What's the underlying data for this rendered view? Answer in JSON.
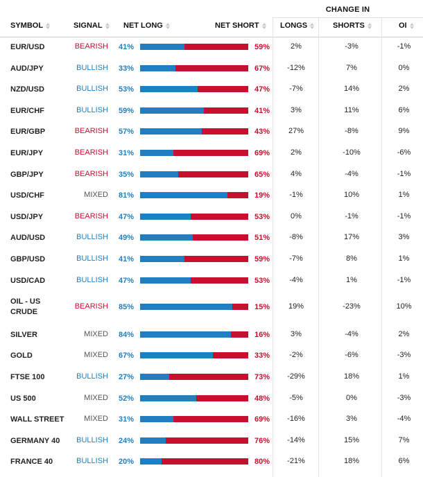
{
  "headers": {
    "symbol": "SYMBOL",
    "signal": "SIGNAL",
    "net_long": "NET LONG",
    "net_short": "NET SHORT",
    "change_in": "CHANGE IN",
    "longs": "LONGS",
    "shorts": "SHORTS",
    "oi": "OI"
  },
  "colors": {
    "bullish": "#1f7fc1",
    "bearish": "#c8102e",
    "mixed": "#555555"
  },
  "rows": [
    {
      "symbol": "EUR/USD",
      "signal": "BEARISH",
      "net_long": "41%",
      "net_short": "59%",
      "longs": "2%",
      "shorts": "-3%",
      "oi": "-1%",
      "long_pct": 41
    },
    {
      "symbol": "AUD/JPY",
      "signal": "BULLISH",
      "net_long": "33%",
      "net_short": "67%",
      "longs": "-12%",
      "shorts": "7%",
      "oi": "0%",
      "long_pct": 33
    },
    {
      "symbol": "NZD/USD",
      "signal": "BULLISH",
      "net_long": "53%",
      "net_short": "47%",
      "longs": "-7%",
      "shorts": "14%",
      "oi": "2%",
      "long_pct": 53
    },
    {
      "symbol": "EUR/CHF",
      "signal": "BULLISH",
      "net_long": "59%",
      "net_short": "41%",
      "longs": "3%",
      "shorts": "11%",
      "oi": "6%",
      "long_pct": 59
    },
    {
      "symbol": "EUR/GBP",
      "signal": "BEARISH",
      "net_long": "57%",
      "net_short": "43%",
      "longs": "27%",
      "shorts": "-8%",
      "oi": "9%",
      "long_pct": 57
    },
    {
      "symbol": "EUR/JPY",
      "signal": "BEARISH",
      "net_long": "31%",
      "net_short": "69%",
      "longs": "2%",
      "shorts": "-10%",
      "oi": "-6%",
      "long_pct": 31
    },
    {
      "symbol": "GBP/JPY",
      "signal": "BEARISH",
      "net_long": "35%",
      "net_short": "65%",
      "longs": "4%",
      "shorts": "-4%",
      "oi": "-1%",
      "long_pct": 35
    },
    {
      "symbol": "USD/CHF",
      "signal": "MIXED",
      "net_long": "81%",
      "net_short": "19%",
      "longs": "-1%",
      "shorts": "10%",
      "oi": "1%",
      "long_pct": 81
    },
    {
      "symbol": "USD/JPY",
      "signal": "BEARISH",
      "net_long": "47%",
      "net_short": "53%",
      "longs": "0%",
      "shorts": "-1%",
      "oi": "-1%",
      "long_pct": 47
    },
    {
      "symbol": "AUD/USD",
      "signal": "BULLISH",
      "net_long": "49%",
      "net_short": "51%",
      "longs": "-8%",
      "shorts": "17%",
      "oi": "3%",
      "long_pct": 49
    },
    {
      "symbol": "GBP/USD",
      "signal": "BULLISH",
      "net_long": "41%",
      "net_short": "59%",
      "longs": "-7%",
      "shorts": "8%",
      "oi": "1%",
      "long_pct": 41
    },
    {
      "symbol": "USD/CAD",
      "signal": "BULLISH",
      "net_long": "47%",
      "net_short": "53%",
      "longs": "-4%",
      "shorts": "1%",
      "oi": "-1%",
      "long_pct": 47
    },
    {
      "symbol": "OIL - US CRUDE",
      "signal": "BEARISH",
      "net_long": "85%",
      "net_short": "15%",
      "longs": "19%",
      "shorts": "-23%",
      "oi": "10%",
      "long_pct": 85
    },
    {
      "symbol": "SILVER",
      "signal": "MIXED",
      "net_long": "84%",
      "net_short": "16%",
      "longs": "3%",
      "shorts": "-4%",
      "oi": "2%",
      "long_pct": 84
    },
    {
      "symbol": "GOLD",
      "signal": "MIXED",
      "net_long": "67%",
      "net_short": "33%",
      "longs": "-2%",
      "shorts": "-6%",
      "oi": "-3%",
      "long_pct": 67
    },
    {
      "symbol": "FTSE 100",
      "signal": "BULLISH",
      "net_long": "27%",
      "net_short": "73%",
      "longs": "-29%",
      "shorts": "18%",
      "oi": "1%",
      "long_pct": 27
    },
    {
      "symbol": "US 500",
      "signal": "MIXED",
      "net_long": "52%",
      "net_short": "48%",
      "longs": "-5%",
      "shorts": "0%",
      "oi": "-3%",
      "long_pct": 52
    },
    {
      "symbol": "WALL STREET",
      "signal": "MIXED",
      "net_long": "31%",
      "net_short": "69%",
      "longs": "-16%",
      "shorts": "3%",
      "oi": "-4%",
      "long_pct": 31
    },
    {
      "symbol": "GERMANY 40",
      "signal": "BULLISH",
      "net_long": "24%",
      "net_short": "76%",
      "longs": "-14%",
      "shorts": "15%",
      "oi": "7%",
      "long_pct": 24
    },
    {
      "symbol": "FRANCE 40",
      "signal": "BULLISH",
      "net_long": "20%",
      "net_short": "80%",
      "longs": "-21%",
      "shorts": "18%",
      "oi": "6%",
      "long_pct": 20
    }
  ]
}
